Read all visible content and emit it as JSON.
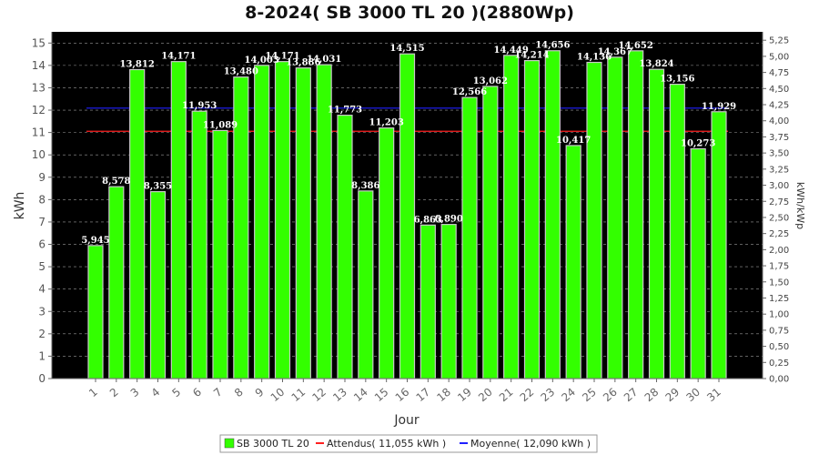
{
  "chart_data": {
    "type": "bar",
    "title": "8-2024( SB 3000 TL 20 )(2880Wp)",
    "xlabel": "Jour",
    "ylabel": "kWh",
    "y2label": "kWh/kWp",
    "ylim": [
      0,
      15.5
    ],
    "y2lim": [
      0,
      5.38
    ],
    "yticks": [
      "0",
      "1",
      "2",
      "3",
      "4",
      "5",
      "6",
      "7",
      "8",
      "9",
      "10",
      "11",
      "12",
      "13",
      "14",
      "15"
    ],
    "y2ticks": [
      "0,00",
      "0,25",
      "0,50",
      "0,75",
      "1,00",
      "1,25",
      "1,50",
      "1,75",
      "2,00",
      "2,25",
      "2,50",
      "2,75",
      "3,00",
      "3,25",
      "3,50",
      "3,75",
      "4,00",
      "4,25",
      "4,50",
      "4,75",
      "5,00",
      "5,25"
    ],
    "categories": [
      "1",
      "2",
      "3",
      "4",
      "5",
      "6",
      "7",
      "8",
      "9",
      "10",
      "11",
      "12",
      "13",
      "14",
      "15",
      "16",
      "17",
      "18",
      "19",
      "20",
      "21",
      "22",
      "23",
      "24",
      "25",
      "26",
      "27",
      "28",
      "29",
      "30",
      "31"
    ],
    "series": [
      {
        "name": "SB 3000 TL 20",
        "color": "#33ff00",
        "values": [
          5.945,
          8.578,
          13.812,
          8.355,
          14.171,
          11.953,
          11.089,
          13.48,
          14.003,
          14.171,
          13.886,
          14.031,
          11.773,
          8.386,
          11.203,
          14.515,
          6.863,
          6.89,
          12.566,
          13.062,
          14.449,
          14.214,
          14.656,
          10.417,
          14.136,
          14.367,
          14.652,
          13.824,
          13.156,
          10.273,
          11.929
        ],
        "labels": [
          "5,945",
          "8,578",
          "13,812",
          "8,355",
          "14,171",
          "11,953",
          "11,089",
          "13,480",
          "14,003",
          "14,171",
          "13,886",
          "14,031",
          "11,773",
          "8,386",
          "11,203",
          "14,515",
          "6,863",
          "6,890",
          "12,566",
          "13,062",
          "14,449",
          "14,214",
          "14,656",
          "10,417",
          "14,136",
          "14,367",
          "14,652",
          "13,824",
          "13,156",
          "10,273",
          "11,929"
        ]
      }
    ],
    "reference_lines": [
      {
        "name": "Attendus( 11,055 kWh )",
        "value": 11.055,
        "color": "#ff2020"
      },
      {
        "name": "Moyenne( 12,090 kWh )",
        "value": 12.09,
        "color": "#2020ff"
      }
    ],
    "grid": true,
    "plot_background": "#000000",
    "legend_position": "bottom"
  }
}
